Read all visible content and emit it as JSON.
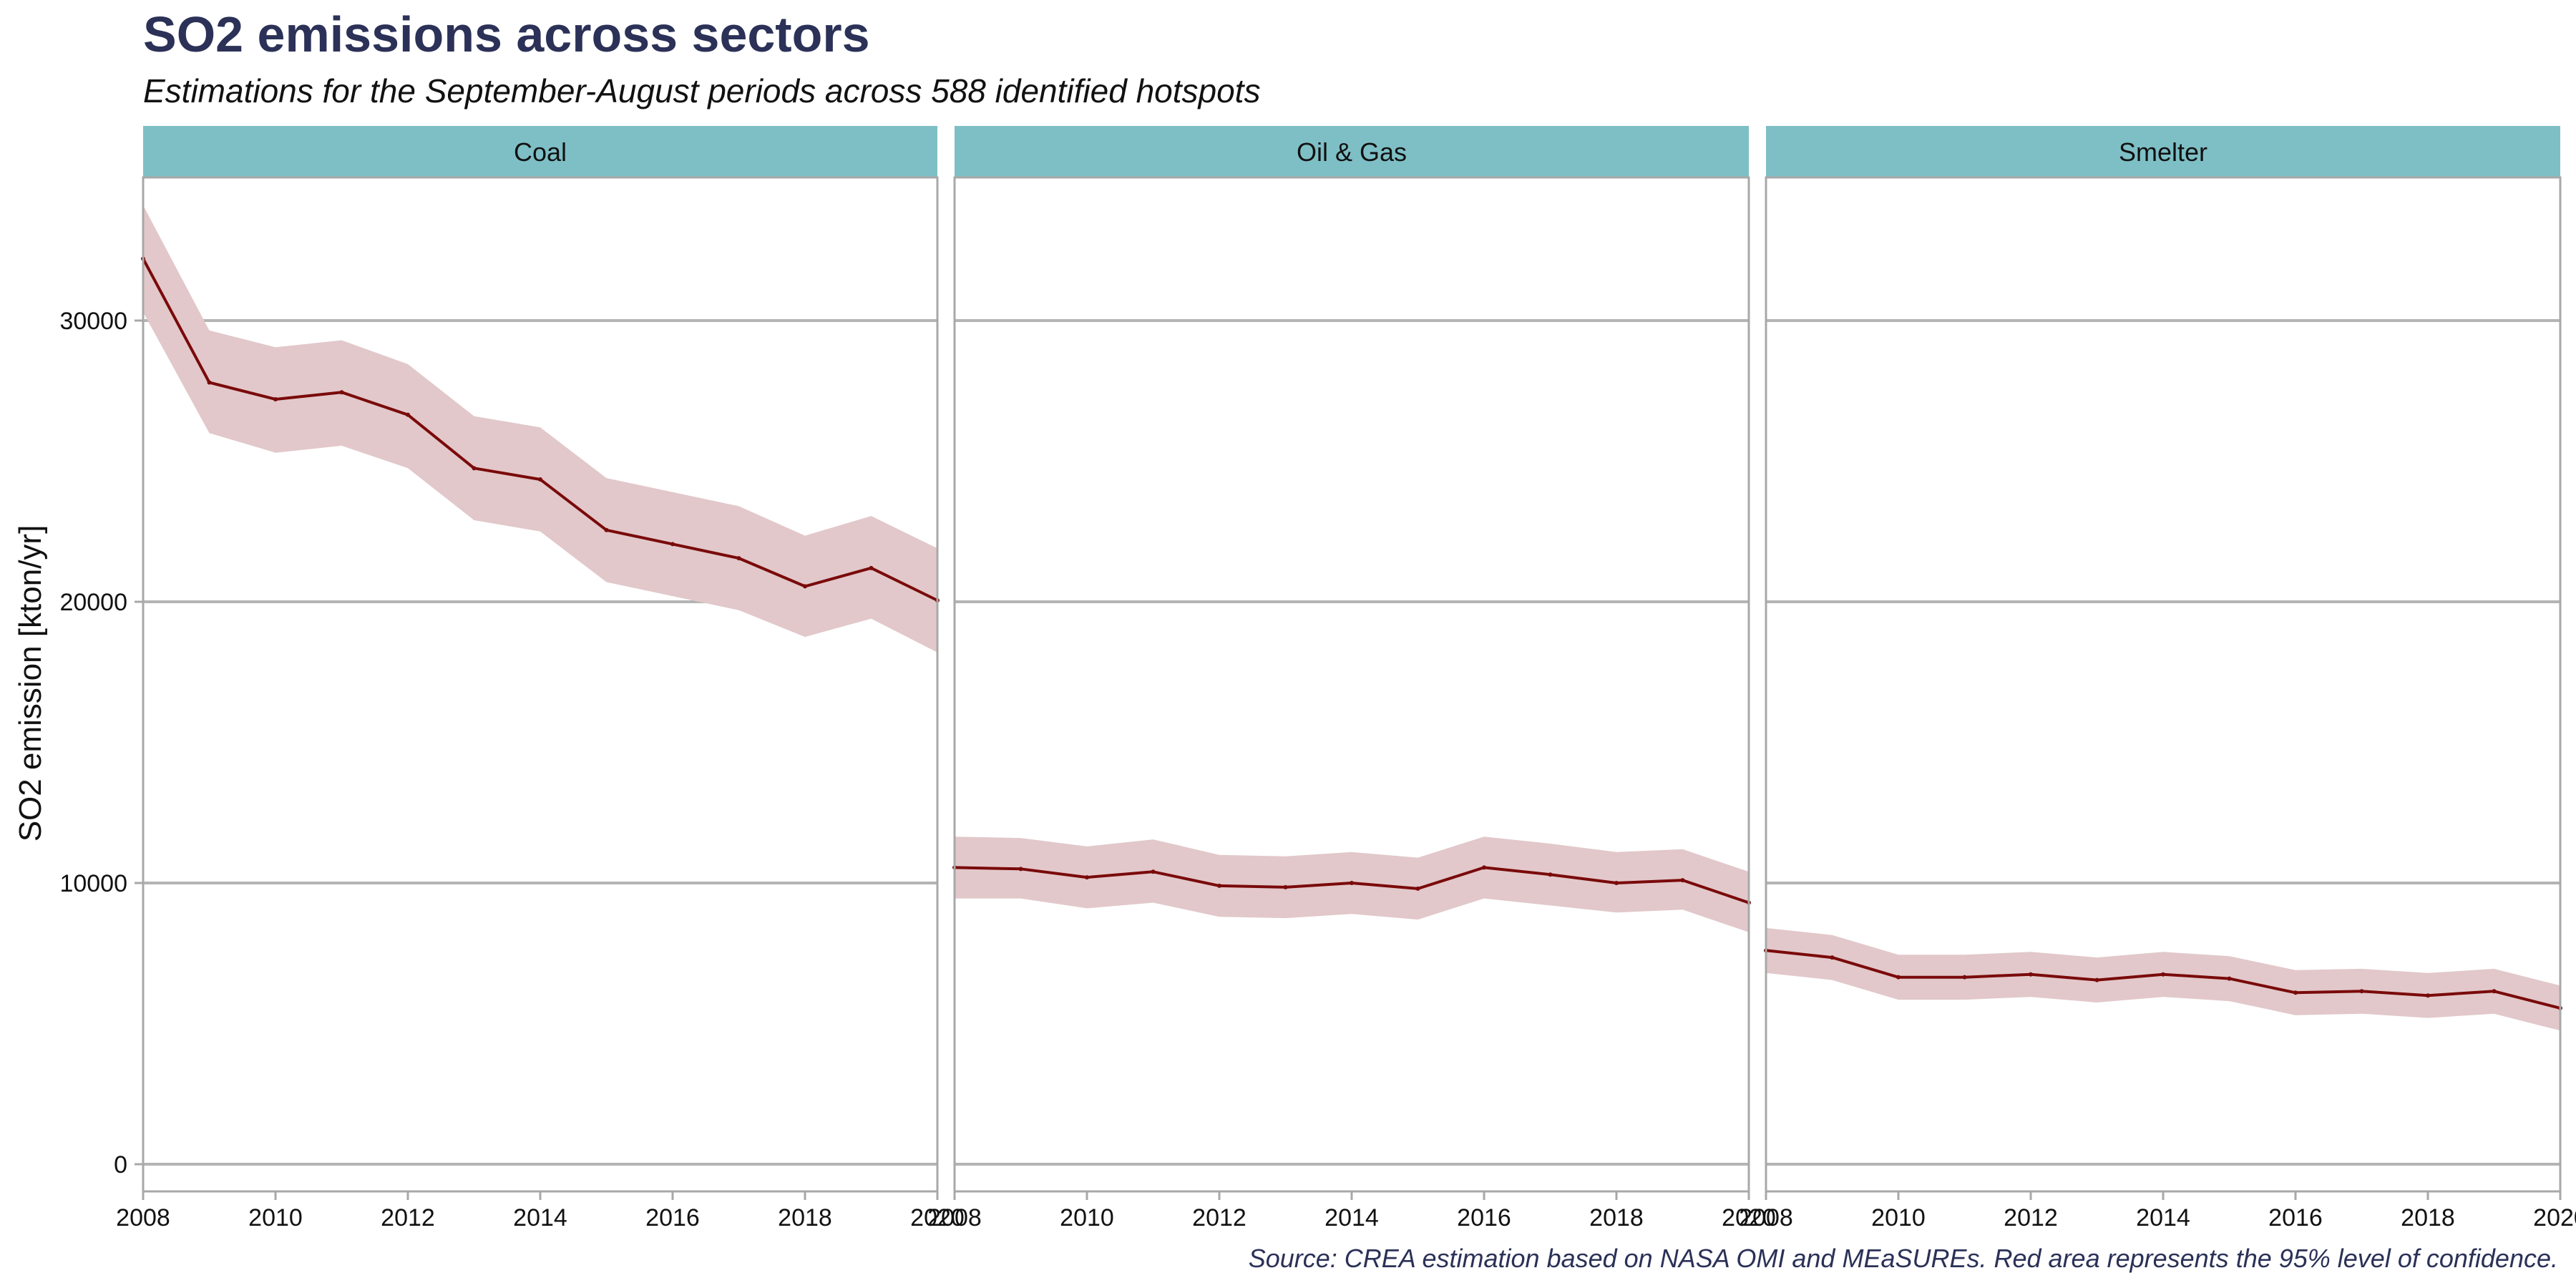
{
  "chart_data": {
    "type": "line",
    "title": "SO2 emissions across sectors",
    "subtitle": "Estimations for the September-August periods across 588 identified hotspots",
    "caption": "Source: CREA estimation based on NASA OMI and MEaSUREs. Red area represents the 95% level of confidence.",
    "xlabel": "",
    "ylabel": "SO2 emission [kton/yr]",
    "xlim": [
      2008,
      2020
    ],
    "ylim": [
      0,
      35000
    ],
    "x_ticks": [
      2008,
      2010,
      2012,
      2014,
      2016,
      2018,
      2020
    ],
    "y_ticks": [
      0,
      10000,
      20000,
      30000
    ],
    "grid": true,
    "colors": {
      "line": "#7a0a0a",
      "band": "#e2c8ca",
      "strip": "#7ebfc6",
      "title": "#2b3157",
      "grid": "#b4b4b4",
      "border": "#a8a8a8"
    },
    "facets": [
      {
        "name": "Coal",
        "x": [
          2008,
          2009,
          2010,
          2011,
          2012,
          2013,
          2014,
          2015,
          2016,
          2017,
          2018,
          2019,
          2020
        ],
        "values": [
          32200,
          27800,
          27200,
          27450,
          26650,
          24750,
          24350,
          22550,
          22050,
          21550,
          20550,
          21200,
          20050
        ],
        "lower": [
          30300,
          26000,
          25300,
          25550,
          24750,
          22900,
          22500,
          20700,
          20200,
          19700,
          18750,
          19400,
          18200
        ],
        "upper": [
          34100,
          29650,
          29050,
          29300,
          28450,
          26600,
          26200,
          24400,
          23900,
          23400,
          22350,
          23050,
          21900
        ]
      },
      {
        "name": "Oil & Gas",
        "x": [
          2008,
          2009,
          2010,
          2011,
          2012,
          2013,
          2014,
          2015,
          2016,
          2017,
          2018,
          2019,
          2020
        ],
        "values": [
          10550,
          10500,
          10200,
          10400,
          9900,
          9850,
          10000,
          9800,
          10550,
          10300,
          10000,
          10100,
          9300
        ],
        "lower": [
          9450,
          9450,
          9100,
          9300,
          8800,
          8750,
          8900,
          8700,
          9450,
          9200,
          8950,
          9050,
          8250
        ],
        "upper": [
          11650,
          11600,
          11300,
          11550,
          11000,
          10950,
          11100,
          10900,
          11650,
          11400,
          11100,
          11200,
          10400
        ]
      },
      {
        "name": "Smelter",
        "x": [
          2008,
          2009,
          2010,
          2011,
          2012,
          2013,
          2014,
          2015,
          2016,
          2017,
          2018,
          2019,
          2020
        ],
        "values": [
          7600,
          7350,
          6650,
          6650,
          6750,
          6550,
          6750,
          6600,
          6100,
          6150,
          6000,
          6150,
          5550
        ],
        "lower": [
          6800,
          6550,
          5850,
          5850,
          5950,
          5750,
          5950,
          5800,
          5300,
          5350,
          5200,
          5350,
          4750
        ],
        "upper": [
          8400,
          8150,
          7450,
          7450,
          7550,
          7350,
          7550,
          7400,
          6900,
          6950,
          6800,
          6950,
          6350
        ]
      }
    ]
  }
}
